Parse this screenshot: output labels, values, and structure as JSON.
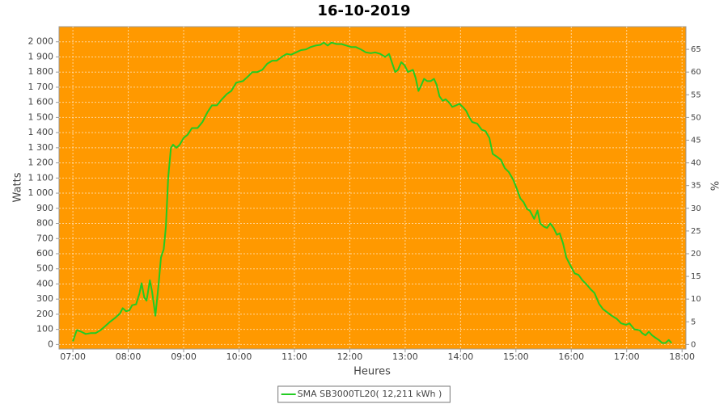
{
  "chart_data": {
    "type": "line",
    "title": "16-10-2019",
    "x_label": "Heures",
    "y_label": "Watts",
    "y2_label": "%",
    "plot_background": "#ff9900",
    "grid": true,
    "legend_position": "bottom",
    "xlim": [
      6.75,
      18.07
    ],
    "xticks": [
      {
        "value": 7,
        "label": "07:00"
      },
      {
        "value": 8,
        "label": "08:00"
      },
      {
        "value": 9,
        "label": "09:00"
      },
      {
        "value": 10,
        "label": "10:00"
      },
      {
        "value": 11,
        "label": "11:00"
      },
      {
        "value": 12,
        "label": "12:00"
      },
      {
        "value": 13,
        "label": "13:00"
      },
      {
        "value": 14,
        "label": "14:00"
      },
      {
        "value": 15,
        "label": "15:00"
      },
      {
        "value": 16,
        "label": "16:00"
      },
      {
        "value": 17,
        "label": "17:00"
      },
      {
        "value": 18,
        "label": "18:00"
      }
    ],
    "ylim": [
      -30,
      2100
    ],
    "yticks": [
      0,
      100,
      200,
      300,
      400,
      500,
      600,
      700,
      800,
      900,
      {
        "value": 1000,
        "label": "1 000"
      },
      {
        "value": 1100,
        "label": "1 100"
      },
      {
        "value": 1200,
        "label": "1 200"
      },
      {
        "value": 1300,
        "label": "1 300"
      },
      {
        "value": 1400,
        "label": "1 400"
      },
      {
        "value": 1500,
        "label": "1 500"
      },
      {
        "value": 1600,
        "label": "1 600"
      },
      {
        "value": 1700,
        "label": "1 700"
      },
      {
        "value": 1800,
        "label": "1 800"
      },
      {
        "value": 1900,
        "label": "1 900"
      },
      {
        "value": 2000,
        "label": "2 000"
      }
    ],
    "y2lim": [
      -1,
      70
    ],
    "y2ticks": [
      0,
      5,
      10,
      15,
      20,
      25,
      30,
      35,
      40,
      45,
      50,
      55,
      60,
      65
    ],
    "x": [
      7.0,
      7.07,
      7.15,
      7.23,
      7.32,
      7.41,
      7.5,
      7.58,
      7.67,
      7.76,
      7.85,
      7.9,
      7.96,
      8.02,
      8.07,
      8.14,
      8.2,
      8.24,
      8.29,
      8.33,
      8.39,
      8.43,
      8.49,
      8.55,
      8.59,
      8.64,
      8.68,
      8.72,
      8.77,
      8.81,
      8.87,
      8.93,
      9.0,
      9.07,
      9.15,
      9.25,
      9.34,
      9.43,
      9.51,
      9.6,
      9.69,
      9.78,
      9.86,
      9.95,
      10.07,
      10.16,
      10.24,
      10.33,
      10.42,
      10.51,
      10.6,
      10.68,
      10.77,
      10.86,
      10.94,
      11.03,
      11.12,
      11.21,
      11.29,
      11.38,
      11.47,
      11.53,
      11.6,
      11.67,
      11.76,
      11.85,
      11.94,
      12.03,
      12.11,
      12.2,
      12.29,
      12.38,
      12.46,
      12.55,
      12.64,
      12.71,
      12.77,
      12.82,
      12.87,
      12.93,
      12.99,
      13.05,
      13.14,
      13.19,
      13.24,
      13.28,
      13.34,
      13.4,
      13.46,
      13.52,
      13.57,
      13.62,
      13.68,
      13.73,
      13.79,
      13.85,
      13.92,
      13.98,
      14.04,
      14.1,
      14.16,
      14.21,
      14.3,
      14.38,
      14.45,
      14.52,
      14.58,
      14.66,
      14.73,
      14.8,
      14.87,
      14.95,
      15.01,
      15.08,
      15.14,
      15.2,
      15.25,
      15.33,
      15.39,
      15.44,
      15.5,
      15.56,
      15.62,
      15.68,
      15.74,
      15.79,
      15.85,
      15.91,
      15.98,
      16.06,
      16.13,
      16.2,
      16.28,
      16.35,
      16.42,
      16.5,
      16.57,
      16.64,
      16.73,
      16.82,
      16.9,
      16.99,
      17.05,
      17.14,
      17.23,
      17.28,
      17.34,
      17.4,
      17.46,
      17.52,
      17.58,
      17.64,
      17.7,
      17.76,
      17.81
    ],
    "series": [
      {
        "name": "SMA SB3000TL20( 12,211 kWh )",
        "color": "#22cc22",
        "values": [
          20,
          95,
          85,
          70,
          75,
          75,
          95,
          120,
          150,
          175,
          205,
          240,
          220,
          225,
          260,
          265,
          335,
          405,
          310,
          290,
          425,
          350,
          190,
          405,
          575,
          630,
          780,
          1100,
          1300,
          1320,
          1300,
          1320,
          1365,
          1385,
          1430,
          1430,
          1470,
          1535,
          1580,
          1580,
          1620,
          1655,
          1675,
          1730,
          1740,
          1770,
          1800,
          1800,
          1815,
          1855,
          1875,
          1875,
          1900,
          1920,
          1915,
          1930,
          1945,
          1950,
          1965,
          1975,
          1980,
          1995,
          1975,
          1995,
          1985,
          1985,
          1975,
          1965,
          1965,
          1950,
          1930,
          1925,
          1930,
          1920,
          1900,
          1920,
          1855,
          1800,
          1815,
          1865,
          1845,
          1800,
          1815,
          1760,
          1675,
          1705,
          1755,
          1740,
          1740,
          1755,
          1715,
          1640,
          1610,
          1620,
          1600,
          1570,
          1580,
          1590,
          1570,
          1545,
          1500,
          1470,
          1460,
          1420,
          1410,
          1365,
          1260,
          1240,
          1220,
          1165,
          1140,
          1090,
          1035,
          965,
          940,
          895,
          885,
          830,
          885,
          800,
          780,
          770,
          800,
          770,
          725,
          735,
          670,
          575,
          525,
          470,
          460,
          425,
          395,
          365,
          340,
          270,
          235,
          215,
          190,
          170,
          140,
          130,
          140,
          100,
          95,
          75,
          60,
          85,
          60,
          45,
          30,
          10,
          10,
          30,
          10
        ]
      }
    ]
  }
}
